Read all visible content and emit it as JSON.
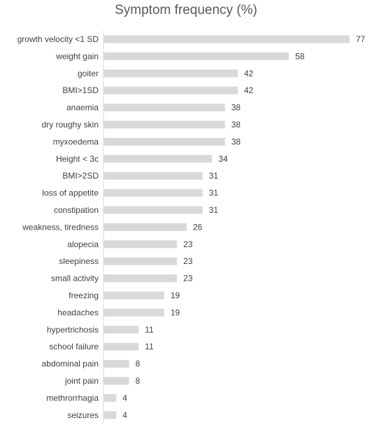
{
  "chart_data": {
    "type": "bar",
    "orientation": "horizontal",
    "title": "Symptom frequency (%)",
    "xlabel": "",
    "ylabel": "",
    "xlim": [
      0,
      77
    ],
    "grid": false,
    "legend": "none",
    "bar_color": "#d9d9d9",
    "axis_color": "#d9d9d9",
    "categories": [
      "growth velocity <1 SD",
      "weight gain",
      "goiter",
      "BMI>1SD",
      "anaemia",
      "dry roughy skin",
      "myxoedema",
      "Height < 3c",
      "BMI>2SD",
      "loss of appetite",
      "constipation",
      "weakness, tiredness",
      "alopecia",
      "sleepiness",
      "small activity",
      "freezing",
      "headaches",
      "hypertrichosis",
      "school failure",
      "abdominal pain",
      "joint pain",
      "methrorrhagia",
      "seizures"
    ],
    "values": [
      77,
      58,
      42,
      42,
      38,
      38,
      38,
      34,
      31,
      31,
      31,
      26,
      23,
      23,
      23,
      19,
      19,
      11,
      11,
      8,
      8,
      4,
      4
    ]
  }
}
